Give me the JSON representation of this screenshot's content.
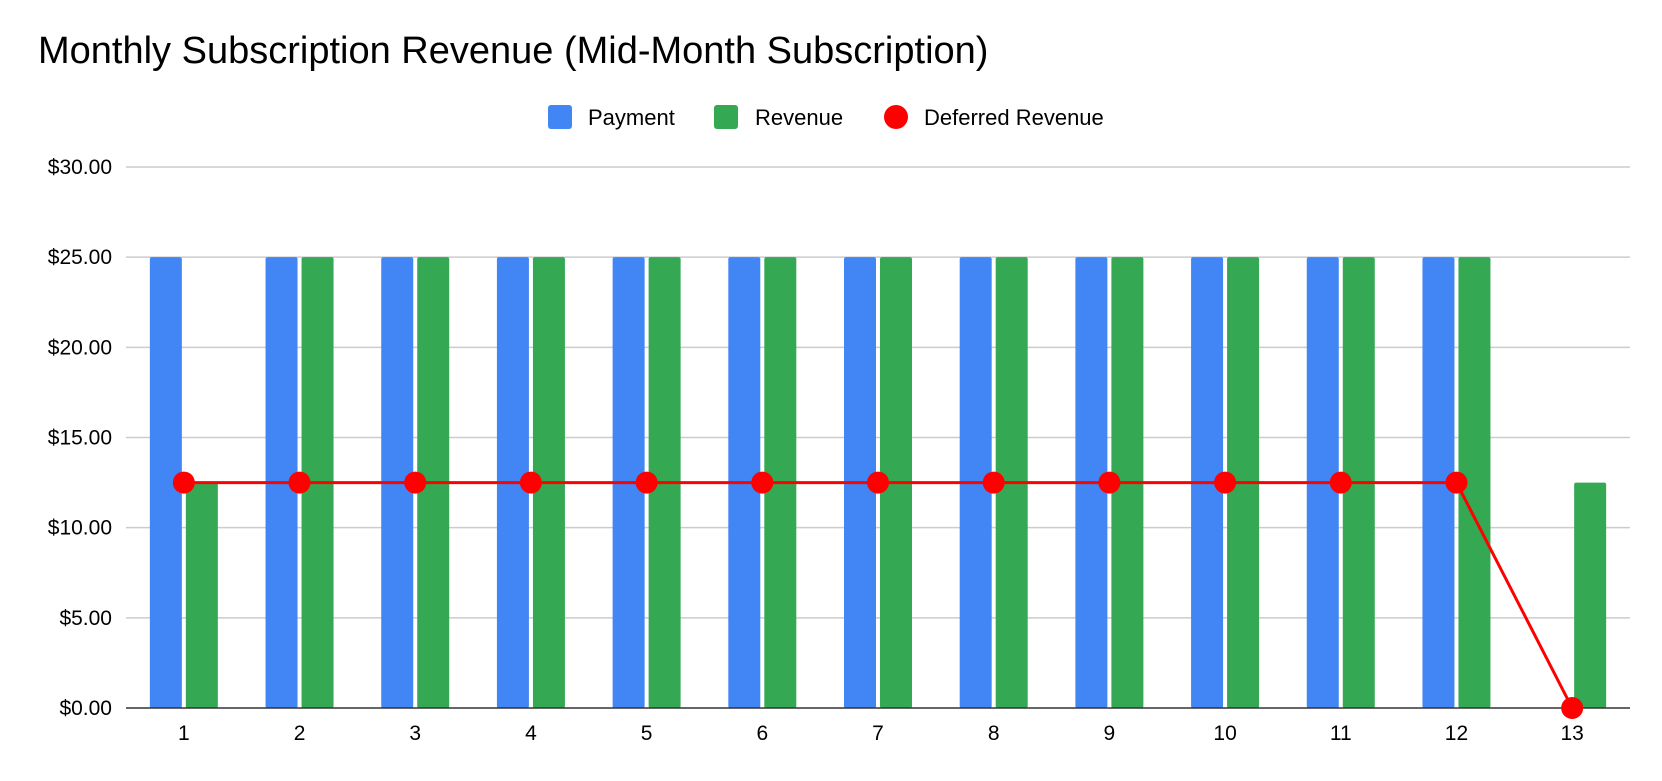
{
  "chart_data": {
    "type": "bar",
    "title": "Monthly Subscription Revenue (Mid-Month Subscription)",
    "xlabel": "",
    "ylabel": "",
    "categories": [
      "1",
      "2",
      "3",
      "4",
      "5",
      "6",
      "7",
      "8",
      "9",
      "10",
      "11",
      "12",
      "13"
    ],
    "series": [
      {
        "name": "Payment",
        "type": "bar",
        "color": "#4285f4",
        "values": [
          25,
          25,
          25,
          25,
          25,
          25,
          25,
          25,
          25,
          25,
          25,
          25,
          0
        ]
      },
      {
        "name": "Revenue",
        "type": "bar",
        "color": "#34a853",
        "values": [
          12.5,
          25,
          25,
          25,
          25,
          25,
          25,
          25,
          25,
          25,
          25,
          25,
          12.5
        ]
      },
      {
        "name": "Deferred Revenue",
        "type": "line",
        "color": "#ff0000",
        "values": [
          12.5,
          12.5,
          12.5,
          12.5,
          12.5,
          12.5,
          12.5,
          12.5,
          12.5,
          12.5,
          12.5,
          12.5,
          0
        ]
      }
    ],
    "ylim": [
      0,
      30
    ],
    "yticks": [
      0,
      5,
      10,
      15,
      20,
      25,
      30
    ],
    "ytick_labels": [
      "$0.00",
      "$5.00",
      "$10.00",
      "$15.00",
      "$20.00",
      "$25.00",
      "$30.00"
    ],
    "grid": true,
    "legend": "top-center"
  }
}
